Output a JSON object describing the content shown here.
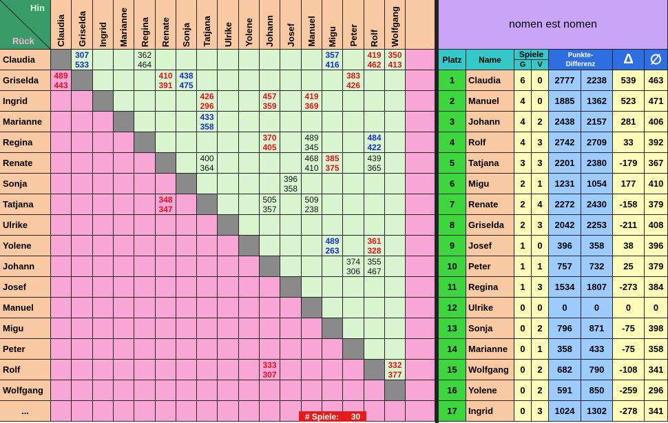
{
  "corner": {
    "hin": "Hin",
    "rueck": "Rück",
    "colors": {
      "green": "#3a9b6a",
      "hin": "#d8f5d0",
      "rueck": "#f7b2d8"
    }
  },
  "players": [
    "Claudia",
    "Griselda",
    "Ingrid",
    "Marianne",
    "Regina",
    "Renate",
    "Sonja",
    "Tatjana",
    "Ulrike",
    "Yolene",
    "Johann",
    "Josef",
    "Manuel",
    "Migu",
    "Peter",
    "Rolf",
    "Wolfgang"
  ],
  "extra_row_label": "...",
  "matrix": [
    {
      "r": 0,
      "c": 1,
      "a": "307",
      "b": "533",
      "color": "blue"
    },
    {
      "r": 0,
      "c": 4,
      "a": "362",
      "b": "464",
      "color": "black"
    },
    {
      "r": 0,
      "c": 13,
      "a": "357",
      "b": "416",
      "color": "blue"
    },
    {
      "r": 0,
      "c": 15,
      "a": "419",
      "b": "462",
      "color": "red"
    },
    {
      "r": 0,
      "c": 16,
      "a": "350",
      "b": "413",
      "color": "red"
    },
    {
      "r": 1,
      "c": 0,
      "a": "489",
      "b": "443",
      "color": "red"
    },
    {
      "r": 1,
      "c": 5,
      "a": "410",
      "b": "391",
      "color": "red"
    },
    {
      "r": 1,
      "c": 6,
      "a": "438",
      "b": "475",
      "color": "blue"
    },
    {
      "r": 1,
      "c": 14,
      "a": "383",
      "b": "426",
      "color": "red"
    },
    {
      "r": 2,
      "c": 7,
      "a": "426",
      "b": "296",
      "color": "red"
    },
    {
      "r": 2,
      "c": 10,
      "a": "457",
      "b": "359",
      "color": "red"
    },
    {
      "r": 2,
      "c": 12,
      "a": "419",
      "b": "369",
      "color": "red"
    },
    {
      "r": 3,
      "c": 7,
      "a": "433",
      "b": "358",
      "color": "blue"
    },
    {
      "r": 4,
      "c": 10,
      "a": "370",
      "b": "405",
      "color": "red"
    },
    {
      "r": 4,
      "c": 12,
      "a": "489",
      "b": "345",
      "color": "black"
    },
    {
      "r": 4,
      "c": 15,
      "a": "484",
      "b": "422",
      "color": "blue"
    },
    {
      "r": 5,
      "c": 7,
      "a": "400",
      "b": "364",
      "color": "black"
    },
    {
      "r": 5,
      "c": 12,
      "a": "468",
      "b": "410",
      "color": "black"
    },
    {
      "r": 5,
      "c": 13,
      "a": "385",
      "b": "375",
      "color": "red"
    },
    {
      "r": 5,
      "c": 15,
      "a": "439",
      "b": "365",
      "color": "black"
    },
    {
      "r": 6,
      "c": 11,
      "a": "396",
      "b": "358",
      "color": "black"
    },
    {
      "r": 7,
      "c": 5,
      "a": "348",
      "b": "347",
      "color": "red"
    },
    {
      "r": 7,
      "c": 10,
      "a": "505",
      "b": "357",
      "color": "black"
    },
    {
      "r": 7,
      "c": 12,
      "a": "509",
      "b": "238",
      "color": "black"
    },
    {
      "r": 9,
      "c": 13,
      "a": "489",
      "b": "263",
      "color": "blue"
    },
    {
      "r": 9,
      "c": 15,
      "a": "361",
      "b": "328",
      "color": "red"
    },
    {
      "r": 10,
      "c": 14,
      "a": "374",
      "b": "306",
      "color": "black"
    },
    {
      "r": 10,
      "c": 15,
      "a": "355",
      "b": "467",
      "color": "black"
    },
    {
      "r": 15,
      "c": 10,
      "a": "333",
      "b": "307",
      "color": "red"
    },
    {
      "r": 15,
      "c": 16,
      "a": "332",
      "b": "377",
      "color": "red"
    }
  ],
  "games_label": "# Spiele:",
  "games_count": "30",
  "standings": {
    "title": "nomen est nomen",
    "headers": {
      "platz": "Platz",
      "name": "Name",
      "spiele": "Spiele",
      "g": "G",
      "v": "V",
      "punkte": "Punkte-\nDifferenz",
      "delta": "Δ",
      "avg": "∅"
    },
    "rows": [
      {
        "platz": "1",
        "name": "Claudia",
        "g": "6",
        "v": "0",
        "p1": "2777",
        "p2": "2238",
        "d": "539",
        "a": "463"
      },
      {
        "platz": "2",
        "name": "Manuel",
        "g": "4",
        "v": "0",
        "p1": "1885",
        "p2": "1362",
        "d": "523",
        "a": "471"
      },
      {
        "platz": "3",
        "name": "Johann",
        "g": "4",
        "v": "2",
        "p1": "2438",
        "p2": "2157",
        "d": "281",
        "a": "406"
      },
      {
        "platz": "4",
        "name": "Rolf",
        "g": "4",
        "v": "3",
        "p1": "2742",
        "p2": "2709",
        "d": "33",
        "a": "392"
      },
      {
        "platz": "5",
        "name": "Tatjana",
        "g": "3",
        "v": "3",
        "p1": "2201",
        "p2": "2380",
        "d": "-179",
        "a": "367"
      },
      {
        "platz": "6",
        "name": "Migu",
        "g": "2",
        "v": "1",
        "p1": "1231",
        "p2": "1054",
        "d": "177",
        "a": "410"
      },
      {
        "platz": "7",
        "name": "Renate",
        "g": "2",
        "v": "4",
        "p1": "2272",
        "p2": "2430",
        "d": "-158",
        "a": "379"
      },
      {
        "platz": "8",
        "name": "Griselda",
        "g": "2",
        "v": "3",
        "p1": "2042",
        "p2": "2253",
        "d": "-211",
        "a": "408"
      },
      {
        "platz": "9",
        "name": "Josef",
        "g": "1",
        "v": "0",
        "p1": "396",
        "p2": "358",
        "d": "38",
        "a": "396"
      },
      {
        "platz": "10",
        "name": "Peter",
        "g": "1",
        "v": "1",
        "p1": "757",
        "p2": "732",
        "d": "25",
        "a": "379"
      },
      {
        "platz": "11",
        "name": "Regina",
        "g": "1",
        "v": "3",
        "p1": "1534",
        "p2": "1807",
        "d": "-273",
        "a": "384"
      },
      {
        "platz": "12",
        "name": "Ulrike",
        "g": "0",
        "v": "0",
        "p1": "0",
        "p2": "0",
        "d": "0",
        "a": "0"
      },
      {
        "platz": "13",
        "name": "Sonja",
        "g": "0",
        "v": "2",
        "p1": "796",
        "p2": "871",
        "d": "-75",
        "a": "398"
      },
      {
        "platz": "14",
        "name": "Marianne",
        "g": "0",
        "v": "1",
        "p1": "358",
        "p2": "433",
        "d": "-75",
        "a": "358"
      },
      {
        "platz": "15",
        "name": "Wolfgang",
        "g": "0",
        "v": "2",
        "p1": "682",
        "p2": "790",
        "d": "-108",
        "a": "341"
      },
      {
        "platz": "16",
        "name": "Yolene",
        "g": "0",
        "v": "2",
        "p1": "591",
        "p2": "850",
        "d": "-259",
        "a": "296"
      },
      {
        "platz": "17",
        "name": "Ingrid",
        "g": "0",
        "v": "3",
        "p1": "1024",
        "p2": "1302",
        "d": "-278",
        "a": "341"
      }
    ]
  }
}
